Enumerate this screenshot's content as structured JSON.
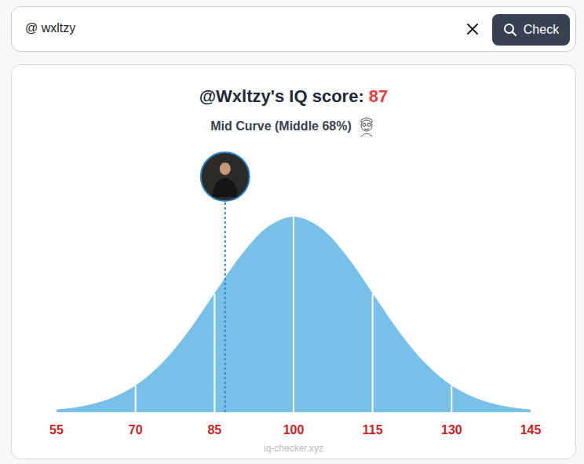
{
  "search": {
    "query": "@ wxltzy",
    "button": "Check"
  },
  "chart_data": {
    "type": "area",
    "title": "@Wxltzy's IQ score:",
    "score": 87,
    "subtitle": "Mid Curve (Middle 68%)",
    "x": [
      55,
      60,
      65,
      70,
      75,
      80,
      85,
      90,
      95,
      100,
      105,
      110,
      115,
      120,
      125,
      130,
      135,
      140,
      145
    ],
    "values": [
      1.1,
      2.9,
      6.6,
      13.5,
      24.9,
      41.1,
      60.7,
      80.1,
      94.6,
      100,
      94.6,
      80.1,
      60.7,
      41.1,
      24.9,
      13.5,
      6.6,
      2.9,
      1.1
    ],
    "color": "#79c0e8",
    "dividers": [
      70,
      85,
      100,
      115,
      130
    ],
    "xlim": [
      55,
      145
    ],
    "xticks": [
      55,
      70,
      85,
      100,
      115,
      130,
      145
    ],
    "ylim": [
      0,
      130
    ],
    "tick_labels": "x",
    "grid": false,
    "footer": "iq-checker.xyz"
  }
}
